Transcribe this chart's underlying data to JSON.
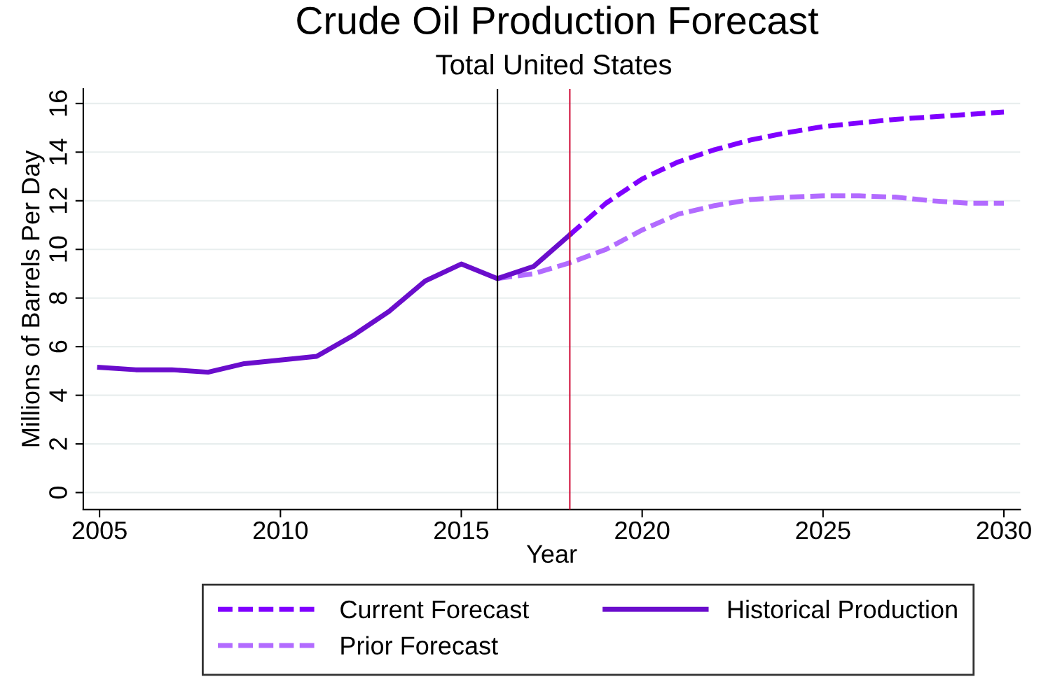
{
  "chart_data": {
    "type": "line",
    "title": "Crude Oil Production Forecast",
    "subtitle": "Total United States",
    "xlabel": "Year",
    "ylabel": "Millions of Barrels Per Day",
    "series": [
      {
        "name": "Current Forecast",
        "color": "#8000ff",
        "line_style": "dashed",
        "x": [
          2018,
          2019,
          2020,
          2021,
          2022,
          2023,
          2024,
          2025,
          2026,
          2027,
          2028,
          2029,
          2030
        ],
        "values": [
          10.6,
          11.9,
          12.9,
          13.6,
          14.1,
          14.5,
          14.8,
          15.05,
          15.2,
          15.35,
          15.45,
          15.55,
          15.65
        ]
      },
      {
        "name": "Prior Forecast",
        "color": "#b26bff",
        "line_style": "dashed",
        "x": [
          2016,
          2017,
          2018,
          2019,
          2020,
          2021,
          2022,
          2023,
          2024,
          2025,
          2026,
          2027,
          2028,
          2029,
          2030
        ],
        "values": [
          8.8,
          9.0,
          9.45,
          10.0,
          10.8,
          11.45,
          11.8,
          12.05,
          12.15,
          12.2,
          12.2,
          12.15,
          12.0,
          11.9,
          11.9
        ]
      },
      {
        "name": "Historical Production",
        "color": "#6a0dcc",
        "line_style": "solid",
        "x": [
          2005,
          2006,
          2007,
          2008,
          2009,
          2010,
          2011,
          2012,
          2013,
          2014,
          2015,
          2016,
          2017,
          2018
        ],
        "values": [
          5.15,
          5.05,
          5.05,
          4.95,
          5.3,
          5.45,
          5.6,
          6.45,
          7.45,
          8.7,
          9.4,
          8.8,
          9.3,
          10.6
        ]
      }
    ],
    "xlim": [
      2004.55,
      2030.45
    ],
    "xticks": [
      2005,
      2010,
      2015,
      2020,
      2025,
      2030
    ],
    "ylim": [
      -0.7,
      16.6
    ],
    "yticks": [
      0,
      2,
      4,
      6,
      8,
      10,
      12,
      14,
      16
    ],
    "ref_lines": [
      {
        "axis": "x",
        "value": 2016,
        "color": "#000000"
      },
      {
        "axis": "x",
        "value": 2018,
        "color": "#d0103a"
      }
    ],
    "grid": "y",
    "legend": "bottom",
    "marker": "none"
  }
}
